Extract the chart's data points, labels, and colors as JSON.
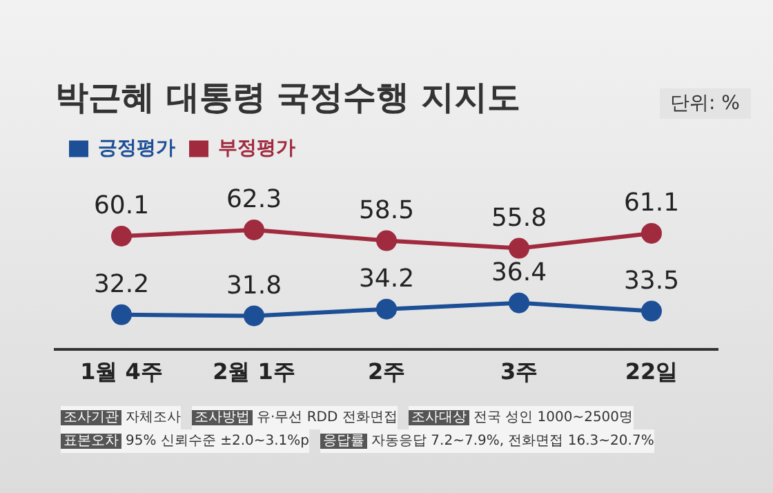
{
  "chart_data": {
    "type": "line",
    "title": "박근혜 대통령 국정수행 지지도",
    "subtitle": "단위: %",
    "categories": [
      "1월 4주",
      "2월 1주",
      "2주",
      "3주",
      "22일"
    ],
    "series": [
      {
        "name": "긍정평가",
        "color": "#1d4f97",
        "values": [
          32.2,
          31.8,
          34.2,
          36.4,
          33.5
        ]
      },
      {
        "name": "부정평가",
        "color": "#a02a3e",
        "values": [
          60.1,
          62.3,
          58.5,
          55.8,
          61.1
        ]
      }
    ],
    "data_labels": true,
    "grid": false,
    "legend": "top left",
    "marker": "circle",
    "line_style": "solid",
    "annotations": [
      "조사기관 자체조사",
      "조사방법 유·무선 RDD 전화면접",
      "조사대상 전국 성인 1000~2500명",
      "표본오차 95% 신뢰수준 ±2.0~3.1%p",
      "응답률 자동응답 7.2~7.9%, 전화면접 16.3~20.7%"
    ]
  }
}
